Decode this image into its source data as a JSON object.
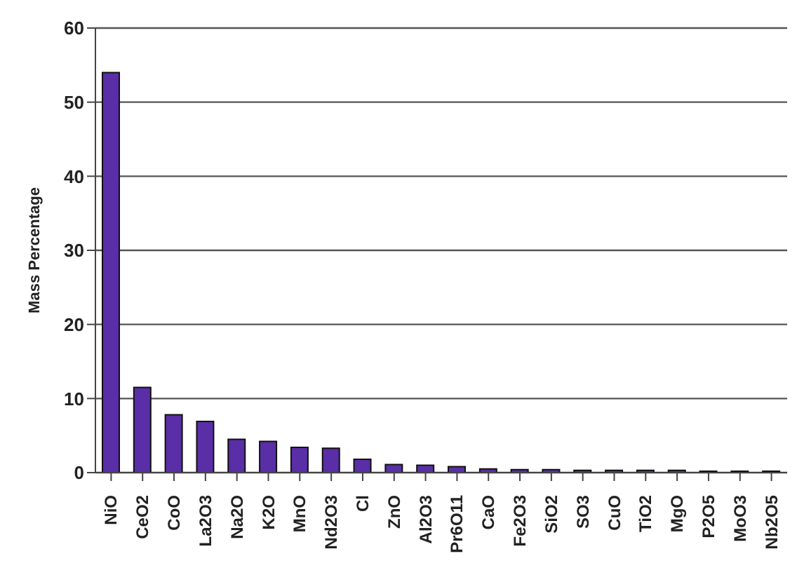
{
  "chart_data": {
    "type": "bar",
    "ylabel": "Mass Percentage",
    "categories": [
      "NiO",
      "CeO2",
      "CoO",
      "La2O3",
      "Na2O",
      "K2O",
      "MnO",
      "Nd2O3",
      "Cl",
      "ZnO",
      "Al2O3",
      "Pr6O11",
      "CaO",
      "Fe2O3",
      "SiO2",
      "SO3",
      "CuO",
      "TiO2",
      "MgO",
      "P2O5",
      "MoO3",
      "Nb2O5"
    ],
    "values": [
      54,
      11.5,
      7.8,
      6.9,
      4.5,
      4.2,
      3.4,
      3.3,
      1.8,
      1.1,
      1.0,
      0.8,
      0.5,
      0.4,
      0.4,
      0.3,
      0.3,
      0.3,
      0.3,
      0.2,
      0.2,
      0.2
    ],
    "color": "#5a2ea6",
    "ylim": [
      0,
      60
    ],
    "yticks": [
      0,
      10,
      20,
      30,
      40,
      50,
      60
    ],
    "grid": "y"
  }
}
